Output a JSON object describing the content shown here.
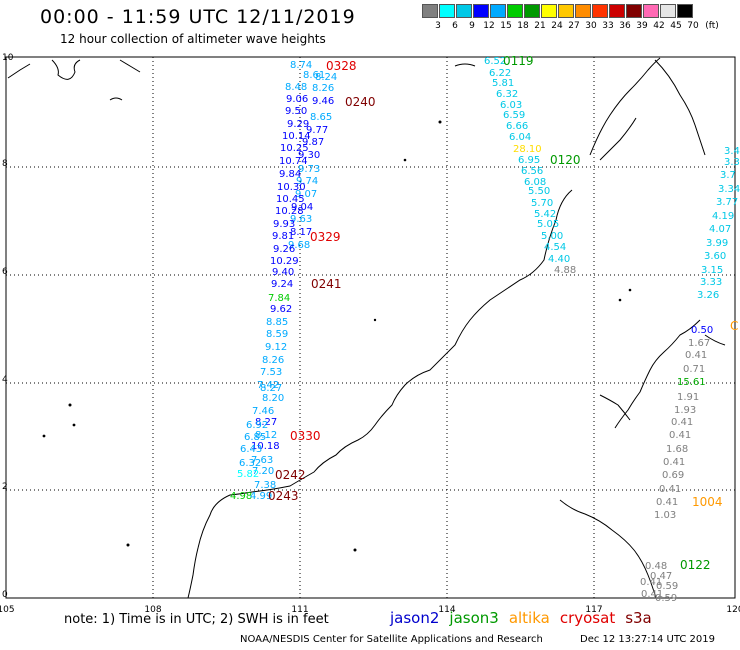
{
  "header": {
    "title": "00:00 - 11:59 UTC 12/11/2019",
    "subtitle": "12 hour collection of altimeter wave heights"
  },
  "color_scale": {
    "labels": [
      "3",
      "6",
      "9",
      "12",
      "15",
      "18",
      "21",
      "24",
      "27",
      "30",
      "33",
      "36",
      "39",
      "42",
      "45",
      "70"
    ],
    "unit": "(ft)",
    "colors": [
      "#808080",
      "#00ffff",
      "#00c8e6",
      "#0000ff",
      "#00aaff",
      "#00cc00",
      "#009900",
      "#ffff00",
      "#ffc800",
      "#ff8c00",
      "#ff3300",
      "#cc0000",
      "#800000",
      "#ff69b4",
      "#e6e6e6",
      "#000000"
    ]
  },
  "axes": {
    "x_ticks": [
      "105",
      "108",
      "111",
      "114",
      "117",
      "120"
    ],
    "y_ticks": [
      "0",
      "2",
      "4",
      "6",
      "8",
      "10"
    ]
  },
  "tracks": [
    {
      "time": "0328",
      "color": "#e00000"
    },
    {
      "time": "0240",
      "color": "#800000"
    },
    {
      "time": "0329",
      "color": "#e00000"
    },
    {
      "time": "0241",
      "color": "#800000"
    },
    {
      "time": "0330",
      "color": "#e00000"
    },
    {
      "time": "0242",
      "color": "#800000"
    },
    {
      "time": "0243",
      "color": "#800000"
    },
    {
      "time": "0119",
      "color": "#009900"
    },
    {
      "time": "0120",
      "color": "#009900"
    },
    {
      "time": "1004",
      "color": "#ff9900"
    },
    {
      "time": "0122",
      "color": "#009900"
    }
  ],
  "readings": [
    {
      "v": "8.74",
      "c": "#00aaff"
    },
    {
      "v": "8.61",
      "c": "#00aaff"
    },
    {
      "v": "8.24",
      "c": "#00aaff"
    },
    {
      "v": "8.48",
      "c": "#00aaff"
    },
    {
      "v": "8.26",
      "c": "#00aaff"
    },
    {
      "v": "9.06",
      "c": "#0000ff"
    },
    {
      "v": "9.46",
      "c": "#0000ff"
    },
    {
      "v": "9.50",
      "c": "#0000ff"
    },
    {
      "v": "8.65",
      "c": "#00aaff"
    },
    {
      "v": "9.29",
      "c": "#0000ff"
    },
    {
      "v": "9.77",
      "c": "#0000ff"
    },
    {
      "v": "10.14",
      "c": "#0000ff"
    },
    {
      "v": "9.87",
      "c": "#0000ff"
    },
    {
      "v": "10.25",
      "c": "#0000ff"
    },
    {
      "v": "9.30",
      "c": "#0000ff"
    },
    {
      "v": "10.74",
      "c": "#0000ff"
    },
    {
      "v": "9.73",
      "c": "#00aaff"
    },
    {
      "v": "9.84",
      "c": "#0000ff"
    },
    {
      "v": "9.74",
      "c": "#00aaff"
    },
    {
      "v": "10.30",
      "c": "#0000ff"
    },
    {
      "v": "9.07",
      "c": "#00aaff"
    },
    {
      "v": "10.45",
      "c": "#0000ff"
    },
    {
      "v": "9.04",
      "c": "#0000ff"
    },
    {
      "v": "10.28",
      "c": "#0000ff"
    },
    {
      "v": "9.63",
      "c": "#00aaff"
    },
    {
      "v": "9.93",
      "c": "#0000ff"
    },
    {
      "v": "8.17",
      "c": "#0000ff"
    },
    {
      "v": "9.81",
      "c": "#0000ff"
    },
    {
      "v": "9.68",
      "c": "#00aaff"
    },
    {
      "v": "9.26",
      "c": "#0000ff"
    },
    {
      "v": "10.29",
      "c": "#0000ff"
    },
    {
      "v": "9.40",
      "c": "#0000ff"
    },
    {
      "v": "9.24",
      "c": "#0000ff"
    },
    {
      "v": "7.84",
      "c": "#00cc00"
    },
    {
      "v": "9.62",
      "c": "#0000ff"
    },
    {
      "v": "8.85",
      "c": "#00aaff"
    },
    {
      "v": "8.59",
      "c": "#00aaff"
    },
    {
      "v": "9.12",
      "c": "#00aaff"
    },
    {
      "v": "8.26",
      "c": "#00aaff"
    },
    {
      "v": "7.53",
      "c": "#00aaff"
    },
    {
      "v": "7.42",
      "c": "#00aaff"
    },
    {
      "v": "8.27",
      "c": "#00aaff"
    },
    {
      "v": "8.20",
      "c": "#00aaff"
    },
    {
      "v": "7.46",
      "c": "#00aaff"
    },
    {
      "v": "8.27",
      "c": "#0000ff"
    },
    {
      "v": "6.92",
      "c": "#00aaff"
    },
    {
      "v": "8.12",
      "c": "#00aaff"
    },
    {
      "v": "6.85",
      "c": "#00aaff"
    },
    {
      "v": "10.18",
      "c": "#0000ff"
    },
    {
      "v": "6.43",
      "c": "#00aaff"
    },
    {
      "v": "7.63",
      "c": "#00aaff"
    },
    {
      "v": "6.32",
      "c": "#00aaff"
    },
    {
      "v": "7.20",
      "c": "#00aaff"
    },
    {
      "v": "5.82",
      "c": "#00ffff"
    },
    {
      "v": "7.38",
      "c": "#00aaff"
    },
    {
      "v": "4.98",
      "c": "#00cc00"
    },
    {
      "v": "4.99",
      "c": "#00aaff"
    },
    {
      "v": "6.52",
      "c": "#00c8e6"
    },
    {
      "v": "6.22",
      "c": "#00c8e6"
    },
    {
      "v": "5.81",
      "c": "#00c8e6"
    },
    {
      "v": "6.32",
      "c": "#00c8e6"
    },
    {
      "v": "6.03",
      "c": "#00c8e6"
    },
    {
      "v": "6.59",
      "c": "#00c8e6"
    },
    {
      "v": "6.66",
      "c": "#00c8e6"
    },
    {
      "v": "6.04",
      "c": "#00c8e6"
    },
    {
      "v": "28.10",
      "c": "#ffdd00"
    },
    {
      "v": "6.95",
      "c": "#00c8e6"
    },
    {
      "v": "6.56",
      "c": "#00c8e6"
    },
    {
      "v": "6.08",
      "c": "#00c8e6"
    },
    {
      "v": "5.50",
      "c": "#00c8e6"
    },
    {
      "v": "5.70",
      "c": "#00c8e6"
    },
    {
      "v": "5.42",
      "c": "#00c8e6"
    },
    {
      "v": "5.05",
      "c": "#00c8e6"
    },
    {
      "v": "5.00",
      "c": "#00c8e6"
    },
    {
      "v": "4.54",
      "c": "#00c8e6"
    },
    {
      "v": "4.40",
      "c": "#00c8e6"
    },
    {
      "v": "4.88",
      "c": "#808080"
    },
    {
      "v": "3.4",
      "c": "#00c8e6"
    },
    {
      "v": "3.3",
      "c": "#00c8e6"
    },
    {
      "v": "3.7",
      "c": "#00c8e6"
    },
    {
      "v": "3.34",
      "c": "#00c8e6"
    },
    {
      "v": "3.77",
      "c": "#00c8e6"
    },
    {
      "v": "4.19",
      "c": "#00c8e6"
    },
    {
      "v": "4.07",
      "c": "#00c8e6"
    },
    {
      "v": "3.99",
      "c": "#00c8e6"
    },
    {
      "v": "3.60",
      "c": "#00c8e6"
    },
    {
      "v": "3.15",
      "c": "#00c8e6"
    },
    {
      "v": "3.33",
      "c": "#00c8e6"
    },
    {
      "v": "3.26",
      "c": "#00c8e6"
    },
    {
      "v": "0.50",
      "c": "#0000ff"
    },
    {
      "v": "1.67",
      "c": "#808080"
    },
    {
      "v": "0.41",
      "c": "#808080"
    },
    {
      "v": "0.71",
      "c": "#808080"
    },
    {
      "v": "15.61",
      "c": "#00aa00"
    },
    {
      "v": "1.91",
      "c": "#808080"
    },
    {
      "v": "1.93",
      "c": "#808080"
    },
    {
      "v": "0.41",
      "c": "#808080"
    },
    {
      "v": "0.41",
      "c": "#808080"
    },
    {
      "v": "1.68",
      "c": "#808080"
    },
    {
      "v": "0.41",
      "c": "#808080"
    },
    {
      "v": "0.69",
      "c": "#808080"
    },
    {
      "v": "0.41",
      "c": "#808080"
    },
    {
      "v": "0.41",
      "c": "#808080"
    },
    {
      "v": "1.03",
      "c": "#808080"
    },
    {
      "v": "0.48",
      "c": "#808080"
    },
    {
      "v": "0.47",
      "c": "#808080"
    },
    {
      "v": "0.41",
      "c": "#808080"
    },
    {
      "v": "0.59",
      "c": "#808080"
    },
    {
      "v": "0.41",
      "c": "#808080"
    },
    {
      "v": "0.59",
      "c": "#808080"
    }
  ],
  "edge_label": {
    "text": "C",
    "color": "#ff9900"
  },
  "note": "note:  1) Time is in UTC;  2) SWH is in feet",
  "satellites": [
    {
      "name": "jason2",
      "color": "#0000cc"
    },
    {
      "name": "jason3",
      "color": "#009900"
    },
    {
      "name": "altika",
      "color": "#ff9900"
    },
    {
      "name": "cryosat",
      "color": "#e00000"
    },
    {
      "name": "s3a",
      "color": "#800000"
    }
  ],
  "footer": "NOAA/NESDIS Center for Satellite Applications and Research",
  "timestamp": "Dec 12 13:27:14 UTC 2019"
}
